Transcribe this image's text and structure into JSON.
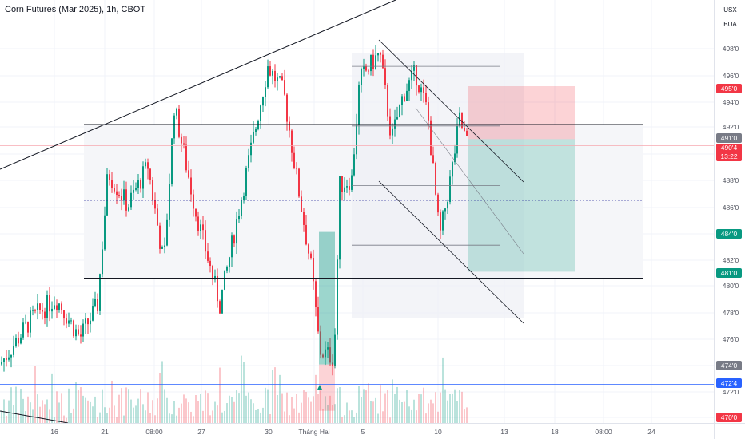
{
  "header": {
    "title": "Corn Futures (Mar 2025), 1h, CBOT"
  },
  "price_axis": {
    "currency": "USX",
    "unit": "BUA",
    "ticks": [
      "498'0",
      "496'0",
      "494'0",
      "492'0",
      "488'0",
      "486'0",
      "482'0",
      "480'0",
      "478'0",
      "476'0",
      "472'0"
    ],
    "tags": {
      "target": {
        "label": "495'0",
        "color": "#f23645"
      },
      "last_price": {
        "label": "491'0",
        "color": "#787b86"
      },
      "current": {
        "label": "490'4",
        "countdown": "13:22",
        "color": "#f23645"
      },
      "resistance_mid": {
        "label": "484'0",
        "color": "#089981"
      },
      "support": {
        "label": "481'0",
        "color": "#089981"
      },
      "range_low": {
        "label": "474'0",
        "color": "#787b86"
      },
      "blue_line": {
        "label": "472'4",
        "color": "#2962ff"
      },
      "bottom": {
        "label": "470'0",
        "color": "#f23645"
      }
    }
  },
  "time_axis": {
    "ticks": [
      "16",
      "21",
      "08:00",
      "27",
      "30",
      "Tháng Hai",
      "5",
      "10",
      "13",
      "18",
      "08:00",
      "24"
    ]
  },
  "chart_data": {
    "type": "candlestick",
    "title": "Corn Futures (Mar 2025), 1h, CBOT",
    "symbol": "Corn Futures (Mar 2025)",
    "interval": "1h",
    "exchange": "CBOT",
    "currency": "USX",
    "ylim": [
      469.5,
      500.5
    ],
    "grid": true,
    "price_levels": {
      "current": 490.5,
      "last_close": 491.0,
      "horizontal_resistance": 492.1,
      "horizontal_support": 480.5,
      "midline_dotted": 486.4,
      "blue_line": 472.5,
      "long_target": 495.0,
      "long_entry": 491.0,
      "long_stop": 481.0
    },
    "path_anchors": [
      {
        "x": 0,
        "price": 474.0
      },
      {
        "x": 40,
        "price": 477.5
      },
      {
        "x": 70,
        "price": 479.0
      },
      {
        "x": 100,
        "price": 476.0
      },
      {
        "x": 122,
        "price": 478.5
      },
      {
        "x": 135,
        "price": 488.5
      },
      {
        "x": 160,
        "price": 486.0
      },
      {
        "x": 185,
        "price": 489.0
      },
      {
        "x": 205,
        "price": 481.5
      },
      {
        "x": 218,
        "price": 493.5
      },
      {
        "x": 245,
        "price": 485.5
      },
      {
        "x": 275,
        "price": 478.5
      },
      {
        "x": 300,
        "price": 486.0
      },
      {
        "x": 335,
        "price": 496.5
      },
      {
        "x": 355,
        "price": 494.5
      },
      {
        "x": 370,
        "price": 488.5
      },
      {
        "x": 390,
        "price": 481.0
      },
      {
        "x": 400,
        "price": 475.0
      },
      {
        "x": 418,
        "price": 474.5
      },
      {
        "x": 425,
        "price": 487.5
      },
      {
        "x": 440,
        "price": 488.0
      },
      {
        "x": 450,
        "price": 495.5
      },
      {
        "x": 475,
        "price": 497.5
      },
      {
        "x": 490,
        "price": 491.0
      },
      {
        "x": 505,
        "price": 494.5
      },
      {
        "x": 520,
        "price": 496.0
      },
      {
        "x": 535,
        "price": 493.0
      },
      {
        "x": 550,
        "price": 483.5
      },
      {
        "x": 565,
        "price": 488.5
      },
      {
        "x": 575,
        "price": 492.5
      },
      {
        "x": 585,
        "price": 490.5
      }
    ]
  }
}
